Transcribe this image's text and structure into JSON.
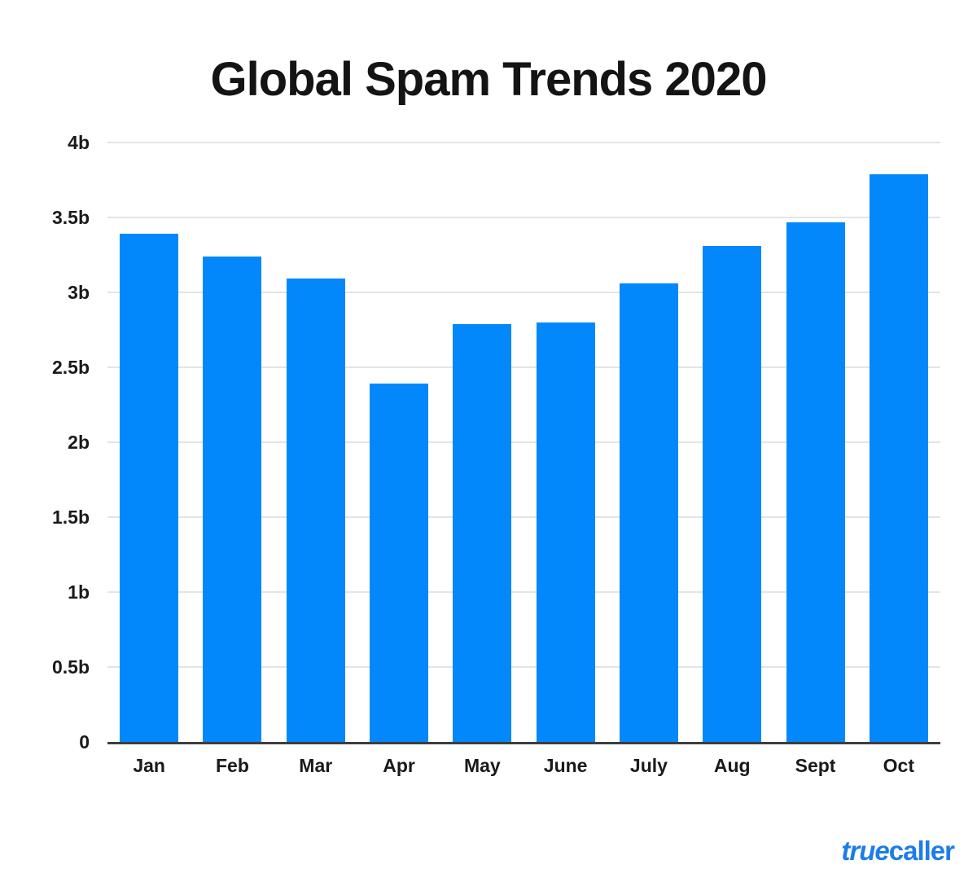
{
  "header": {
    "title": "Global Spam Trends 2020"
  },
  "chart_data": {
    "type": "bar",
    "title": "Global Spam Trends 2020",
    "categories": [
      "Jan",
      "Feb",
      "Mar",
      "Apr",
      "May",
      "June",
      "July",
      "Aug",
      "Sept",
      "Oct"
    ],
    "values": [
      3.39,
      3.24,
      3.09,
      2.39,
      2.79,
      2.8,
      3.06,
      3.31,
      3.47,
      3.79
    ],
    "xlabel": "",
    "ylabel": "",
    "ylim": [
      0,
      4
    ],
    "y_ticks": [
      {
        "value": 4,
        "label": "4b"
      },
      {
        "value": 3.5,
        "label": "3.5b"
      },
      {
        "value": 3,
        "label": "3b"
      },
      {
        "value": 2.5,
        "label": "2.5b"
      },
      {
        "value": 2,
        "label": "2b"
      },
      {
        "value": 1.5,
        "label": "1.5b"
      },
      {
        "value": 1,
        "label": "1b"
      },
      {
        "value": 0.5,
        "label": "0.5b"
      },
      {
        "value": 0,
        "label": "0"
      }
    ],
    "bar_color": "#0388fc",
    "grid": true,
    "gridline_color": "#e4e4e4",
    "axis_line_color": "#3d3d3d",
    "legend": false
  },
  "footer": {
    "logo_true": "true",
    "logo_caller": "caller",
    "logo_color": "#1c7de9"
  }
}
